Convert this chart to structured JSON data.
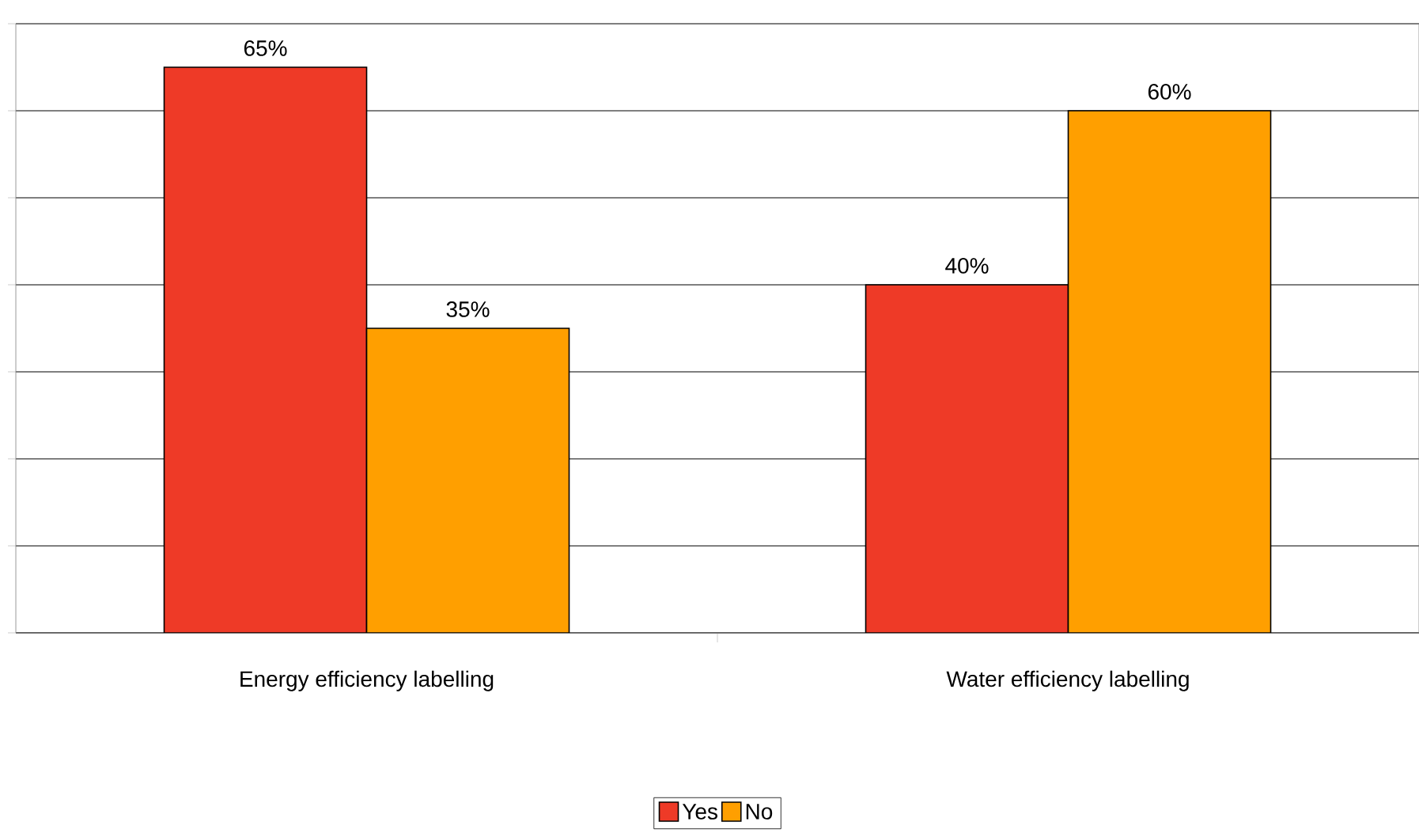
{
  "chart_data": {
    "type": "bar",
    "categories": [
      "Energy efficiency labelling",
      "Water efficiency labelling"
    ],
    "series": [
      {
        "name": "Yes",
        "color": "#ee3a27",
        "values": [
          65,
          40
        ],
        "value_labels": [
          "65%",
          "40%"
        ]
      },
      {
        "name": "No",
        "color": "#ff9f00",
        "values": [
          35,
          60
        ],
        "value_labels": [
          "35%",
          "60%"
        ]
      }
    ],
    "ylim": [
      0,
      70
    ],
    "yticks": [
      {
        "value": 0,
        "label": null
      },
      {
        "value": 10,
        "label": null
      },
      {
        "value": 20,
        "label": null
      },
      {
        "value": 30,
        "label": null
      },
      {
        "value": 40,
        "label": null
      },
      {
        "value": 50,
        "label": null
      },
      {
        "value": 60,
        "label": null
      },
      {
        "value": 70,
        "label": null
      }
    ],
    "grid": "y",
    "legend": "bottom",
    "tick_labels": "x"
  }
}
